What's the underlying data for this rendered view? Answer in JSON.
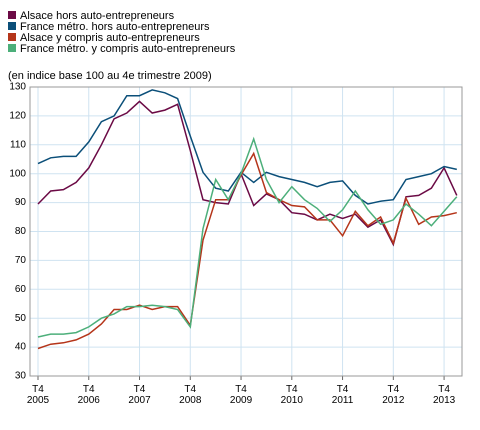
{
  "chart_data": {
    "type": "line",
    "subtitle": "(en indice base 100 au 4e trimestre 2009)",
    "categories": [
      "T4 2005",
      null,
      null,
      null,
      "T4 2006",
      null,
      null,
      null,
      "T4 2007",
      null,
      null,
      null,
      "T4 2008",
      null,
      null,
      null,
      "T4 2009",
      null,
      null,
      null,
      "T4 2010",
      null,
      null,
      null,
      "T4 2011",
      null,
      null,
      null,
      "T4 2012",
      null,
      null,
      null,
      "T4 2013",
      null
    ],
    "series": [
      {
        "name": "Alsace hors auto-entrepreneurs",
        "color": "#6b0a45",
        "values": [
          89.5,
          94,
          94.5,
          97,
          102,
          110,
          119,
          121,
          125,
          121,
          122,
          124,
          108,
          91,
          90,
          89.5,
          100,
          89,
          93,
          91,
          86.5,
          86,
          84,
          86,
          84.5,
          86,
          81.5,
          84,
          75.5,
          92,
          92.5,
          95,
          102,
          92.5
        ]
      },
      {
        "name": "France métro. hors auto-entrepreneurs",
        "color": "#0b4f79",
        "values": [
          103.5,
          105.5,
          106,
          106,
          111,
          118,
          120,
          127,
          127,
          129,
          128,
          126,
          113,
          100.5,
          95,
          94,
          100.5,
          97,
          100.5,
          99,
          98,
          97,
          95.5,
          97,
          97.5,
          92.5,
          89.5,
          90.5,
          91,
          98,
          99,
          100,
          102.5,
          101.5
        ]
      },
      {
        "name": "Alsace y compris auto-entrepreneurs",
        "color": "#b5351a",
        "values": [
          39.5,
          41,
          41.5,
          42.5,
          44.5,
          48,
          53,
          53,
          54.5,
          53,
          54,
          54,
          47.5,
          77,
          91,
          91,
          99.5,
          107,
          93.5,
          91,
          89,
          88.5,
          84,
          84,
          78.5,
          87,
          82,
          85,
          76,
          91.5,
          82.5,
          85,
          85.5,
          86.5
        ]
      },
      {
        "name": "France métro. y compris auto-entrepreneurs",
        "color": "#4caf7a",
        "values": [
          43.5,
          44.5,
          44.5,
          45,
          47,
          50,
          51.5,
          54,
          54,
          54.5,
          54,
          53,
          47,
          81,
          98,
          91,
          100,
          112,
          98,
          90,
          95.5,
          91,
          88,
          83.5,
          87.5,
          94,
          87.5,
          82.5,
          84,
          89.5,
          86,
          82,
          87,
          92
        ]
      }
    ],
    "ylim": [
      30,
      130
    ],
    "yticks": [
      30,
      40,
      50,
      60,
      70,
      80,
      90,
      100,
      110,
      120,
      130
    ],
    "grid": true
  }
}
